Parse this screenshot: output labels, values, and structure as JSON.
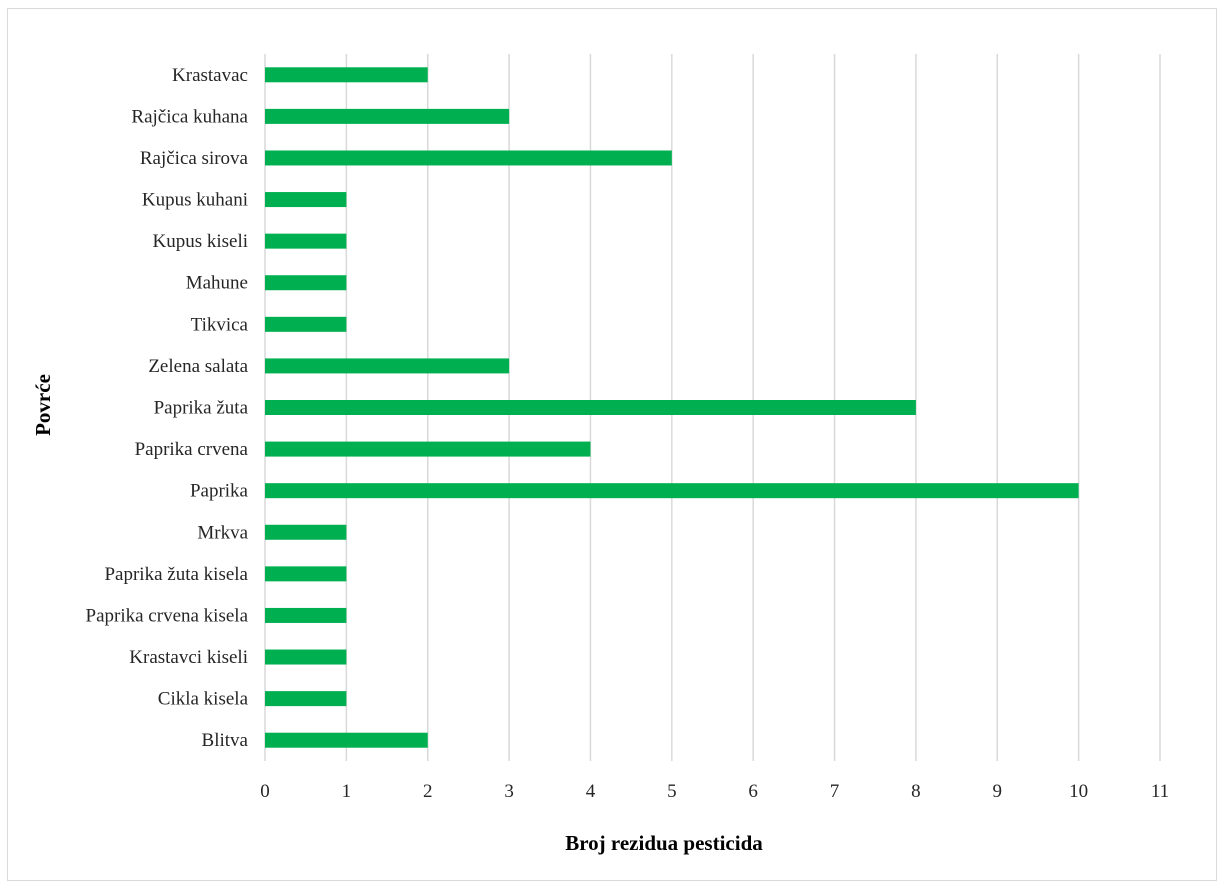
{
  "chart_data": {
    "type": "bar",
    "orientation": "horizontal",
    "categories": [
      "Krastavac",
      "Rajčica kuhana",
      "Rajčica sirova",
      "Kupus kuhani",
      "Kupus kiseli",
      "Mahune",
      "Tikvica",
      "Zelena salata",
      "Paprika žuta",
      "Paprika crvena",
      "Paprika",
      "Mrkva",
      "Paprika žuta kisela",
      "Paprika crvena kisela",
      "Krastavci kiseli",
      "Cikla kisela",
      "Blitva"
    ],
    "values": [
      2,
      3,
      5,
      1,
      1,
      1,
      1,
      3,
      8,
      4,
      10,
      1,
      1,
      1,
      1,
      1,
      2
    ],
    "xlabel": "Broj rezidua pesticida",
    "ylabel": "Povrće",
    "xlim": [
      0,
      11
    ],
    "xticks": [
      "0",
      "1",
      "2",
      "3",
      "4",
      "5",
      "6",
      "7",
      "8",
      "9",
      "10",
      "11"
    ],
    "grid": "vertical",
    "legend": "none",
    "bar_color": "#00b050",
    "grid_color": "#d9d9d9"
  }
}
